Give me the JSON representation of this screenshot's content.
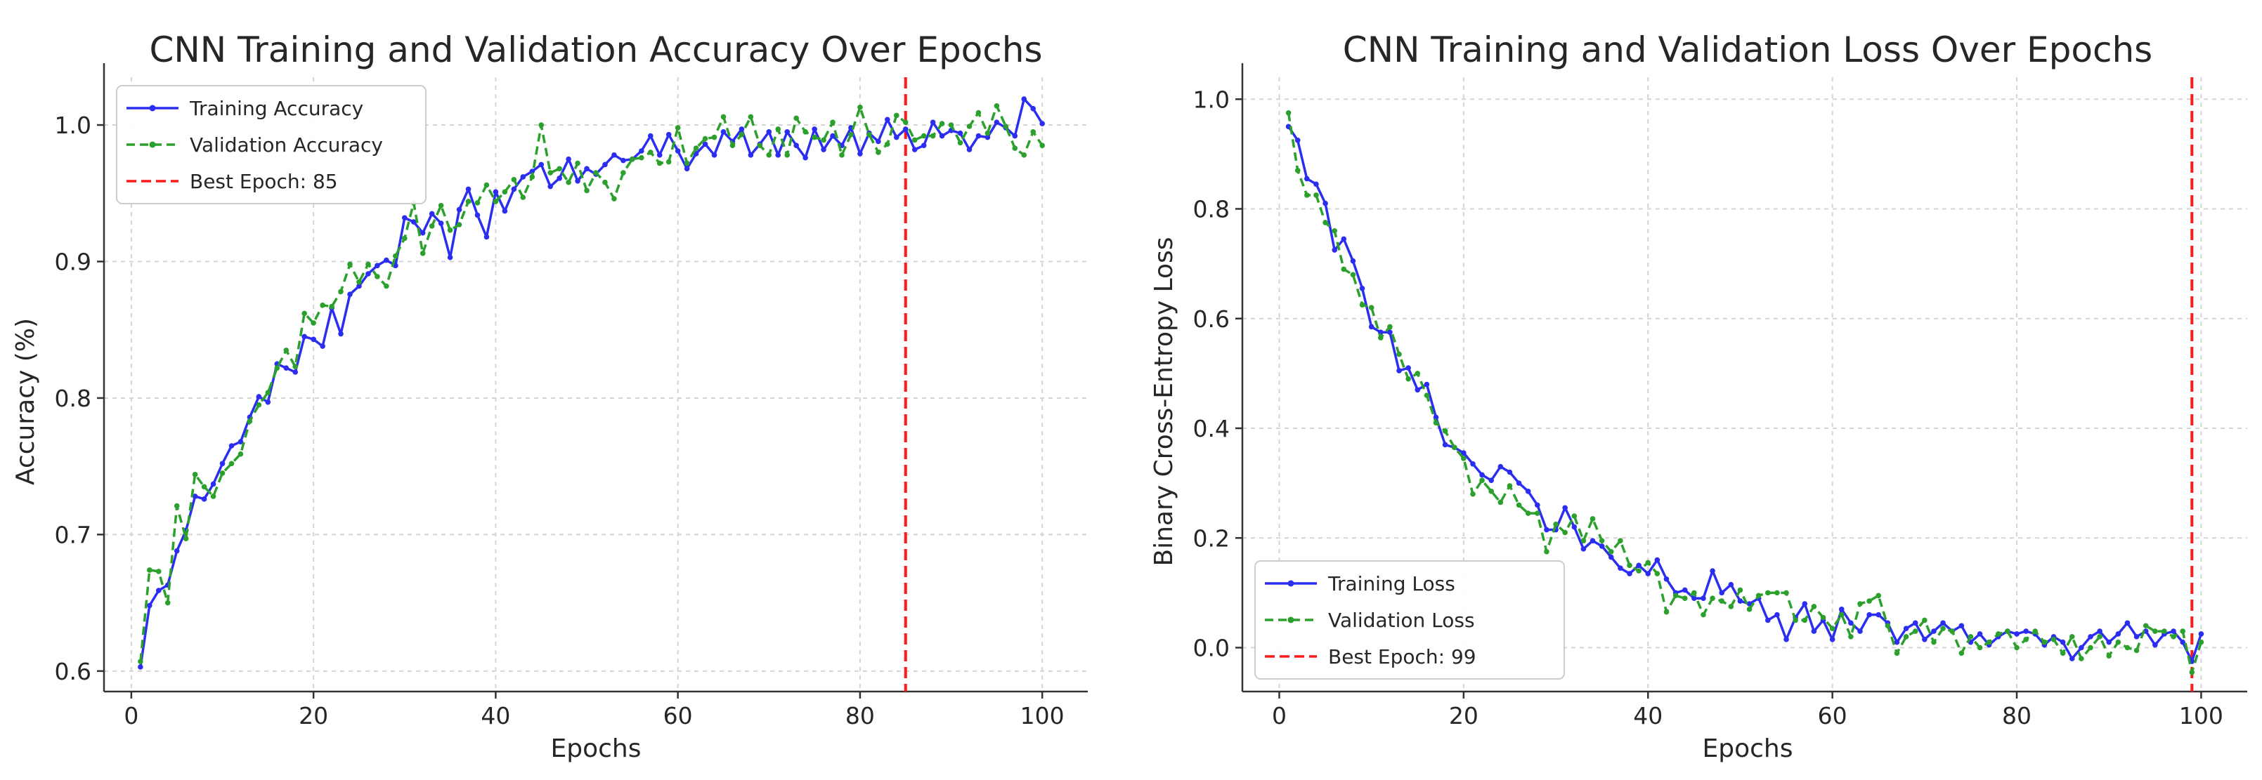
{
  "chart_data": [
    {
      "type": "line",
      "title": "CNN Training and Validation Accuracy Over Epochs",
      "xlabel": "Epochs",
      "ylabel": "Accuracy (%)",
      "xlim": [
        -3,
        105
      ],
      "ylim": [
        0.585,
        1.035
      ],
      "xticks": [
        0,
        20,
        40,
        60,
        80,
        100
      ],
      "yticks": [
        0.6,
        0.7,
        0.8,
        0.9,
        1.0
      ],
      "ytick_labels": [
        "0.6",
        "0.7",
        "0.8",
        "0.9",
        "1.0"
      ],
      "grid": true,
      "legend_position": "top-left",
      "best_epoch": 85,
      "colors": {
        "train": "#2b2ef0",
        "val": "#2ca02c",
        "best": "#ff1a1a"
      },
      "series": [
        {
          "name": "Training Accuracy",
          "style": "solid",
          "x_start": 1,
          "values": [
            0.603,
            0.648,
            0.659,
            0.663,
            0.688,
            0.703,
            0.728,
            0.726,
            0.737,
            0.752,
            0.765,
            0.768,
            0.786,
            0.801,
            0.797,
            0.825,
            0.822,
            0.819,
            0.845,
            0.843,
            0.838,
            0.866,
            0.847,
            0.876,
            0.882,
            0.891,
            0.897,
            0.901,
            0.897,
            0.932,
            0.929,
            0.921,
            0.935,
            0.928,
            0.903,
            0.938,
            0.953,
            0.934,
            0.918,
            0.951,
            0.937,
            0.953,
            0.962,
            0.966,
            0.971,
            0.955,
            0.961,
            0.975,
            0.959,
            0.968,
            0.964,
            0.971,
            0.978,
            0.974,
            0.975,
            0.981,
            0.992,
            0.978,
            0.993,
            0.981,
            0.968,
            0.979,
            0.986,
            0.978,
            0.995,
            0.988,
            0.997,
            0.978,
            0.986,
            0.995,
            0.978,
            0.995,
            0.985,
            0.976,
            0.997,
            0.982,
            0.992,
            0.985,
            0.998,
            0.979,
            0.994,
            0.988,
            1.004,
            0.991,
            0.997,
            0.982,
            0.985,
            1.002,
            0.992,
            0.996,
            0.994,
            0.982,
            0.992,
            0.991,
            1.002,
            0.998,
            0.992,
            1.019,
            1.012,
            1.001
          ]
        },
        {
          "name": "Validation Accuracy",
          "style": "dashed",
          "x_start": 1,
          "values": [
            0.607,
            0.674,
            0.673,
            0.65,
            0.721,
            0.697,
            0.744,
            0.735,
            0.728,
            0.745,
            0.752,
            0.759,
            0.783,
            0.795,
            0.804,
            0.822,
            0.835,
            0.823,
            0.862,
            0.855,
            0.868,
            0.867,
            0.878,
            0.898,
            0.885,
            0.898,
            0.889,
            0.882,
            0.904,
            0.917,
            0.943,
            0.906,
            0.926,
            0.941,
            0.923,
            0.927,
            0.944,
            0.943,
            0.956,
            0.944,
            0.951,
            0.96,
            0.947,
            0.962,
            1.0,
            0.965,
            0.968,
            0.958,
            0.972,
            0.952,
            0.965,
            0.958,
            0.946,
            0.965,
            0.975,
            0.976,
            0.98,
            0.972,
            0.973,
            0.998,
            0.972,
            0.983,
            0.99,
            0.991,
            1.006,
            0.985,
            0.993,
            1.006,
            0.985,
            0.978,
            0.997,
            0.978,
            1.005,
            0.995,
            0.991,
            0.989,
            1.002,
            0.978,
            0.993,
            1.013,
            0.993,
            0.98,
            0.986,
            1.007,
            1.002,
            0.989,
            0.992,
            0.992,
            1.001,
            1.0,
            0.987,
            0.999,
            1.009,
            0.994,
            1.014,
            0.999,
            0.983,
            0.978,
            0.995,
            0.985
          ]
        }
      ],
      "legend": [
        "Training Accuracy",
        "Validation Accuracy",
        "Best Epoch: 85"
      ]
    },
    {
      "type": "line",
      "title": "CNN Training and Validation Loss Over Epochs",
      "xlabel": "Epochs",
      "ylabel": "Binary Cross-Entropy Loss",
      "xlim": [
        -4,
        105
      ],
      "ylim": [
        -0.08,
        1.04
      ],
      "xticks": [
        0,
        20,
        40,
        60,
        80,
        100
      ],
      "yticks": [
        0.0,
        0.2,
        0.4,
        0.6,
        0.8,
        1.0
      ],
      "ytick_labels": [
        "0.0",
        "0.2",
        "0.4",
        "0.6",
        "0.8",
        "1.0"
      ],
      "grid": true,
      "legend_position": "bottom-left",
      "best_epoch": 99,
      "colors": {
        "train": "#2b2ef0",
        "val": "#2ca02c",
        "best": "#ff1a1a"
      },
      "series": [
        {
          "name": "Training Loss",
          "style": "solid",
          "x_start": 1,
          "values": [
            0.95,
            0.925,
            0.855,
            0.845,
            0.81,
            0.725,
            0.745,
            0.705,
            0.655,
            0.585,
            0.575,
            0.575,
            0.505,
            0.51,
            0.47,
            0.48,
            0.42,
            0.37,
            0.365,
            0.355,
            0.335,
            0.315,
            0.305,
            0.33,
            0.32,
            0.3,
            0.285,
            0.26,
            0.215,
            0.215,
            0.255,
            0.22,
            0.18,
            0.195,
            0.185,
            0.165,
            0.145,
            0.135,
            0.15,
            0.135,
            0.16,
            0.125,
            0.1,
            0.105,
            0.09,
            0.09,
            0.14,
            0.1,
            0.115,
            0.085,
            0.08,
            0.09,
            0.05,
            0.06,
            0.015,
            0.055,
            0.08,
            0.03,
            0.05,
            0.015,
            0.07,
            0.045,
            0.03,
            0.06,
            0.06,
            0.045,
            0.01,
            0.035,
            0.045,
            0.015,
            0.03,
            0.045,
            0.03,
            0.04,
            0.01,
            0.025,
            0.005,
            0.02,
            0.03,
            0.025,
            0.03,
            0.025,
            0.005,
            0.02,
            0.01,
            -0.02,
            0.0,
            0.02,
            0.03,
            0.01,
            0.025,
            0.045,
            0.02,
            0.03,
            0.005,
            0.025,
            0.03,
            0.01,
            -0.025,
            0.025
          ]
        },
        {
          "name": "Validation Loss",
          "style": "dashed",
          "x_start": 1,
          "values": [
            0.975,
            0.87,
            0.825,
            0.825,
            0.775,
            0.76,
            0.69,
            0.68,
            0.625,
            0.62,
            0.565,
            0.585,
            0.535,
            0.49,
            0.5,
            0.46,
            0.41,
            0.395,
            0.365,
            0.345,
            0.28,
            0.305,
            0.285,
            0.265,
            0.295,
            0.26,
            0.245,
            0.245,
            0.175,
            0.225,
            0.21,
            0.24,
            0.195,
            0.235,
            0.195,
            0.175,
            0.195,
            0.15,
            0.14,
            0.155,
            0.135,
            0.065,
            0.095,
            0.09,
            0.1,
            0.06,
            0.09,
            0.085,
            0.075,
            0.105,
            0.07,
            0.095,
            0.1,
            0.1,
            0.1,
            0.05,
            0.05,
            0.075,
            0.055,
            0.035,
            0.06,
            0.02,
            0.08,
            0.085,
            0.095,
            0.04,
            -0.01,
            0.02,
            0.03,
            0.05,
            0.01,
            0.035,
            0.03,
            -0.01,
            0.02,
            0.0,
            0.01,
            0.025,
            0.03,
            0.0,
            0.015,
            0.03,
            0.01,
            0.015,
            -0.01,
            0.02,
            -0.02,
            0.0,
            0.02,
            -0.015,
            0.01,
            0.0,
            -0.005,
            0.04,
            0.03,
            0.03,
            0.02,
            0.03,
            -0.045,
            0.01
          ]
        }
      ],
      "legend": [
        "Training Loss",
        "Validation Loss",
        "Best Epoch: 99"
      ]
    }
  ]
}
